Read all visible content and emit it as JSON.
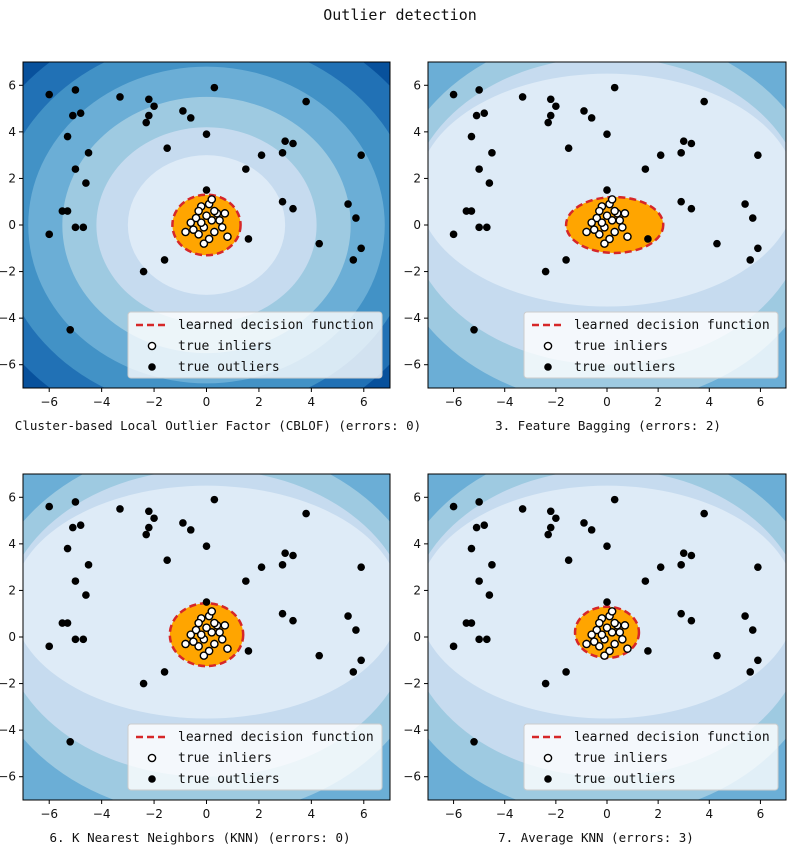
{
  "figure": {
    "suptitle": "Outlier detection",
    "legend": {
      "decision": "learned decision function",
      "inliers": "true inliers",
      "outliers": "true outliers"
    }
  },
  "chart_data": [
    {
      "type": "scatter",
      "title": "Cluster-based Local Outlier Factor (CBLOF) (errors: 0)",
      "xlim": [
        -7,
        7
      ],
      "ylim": [
        -7,
        7
      ],
      "xticks": [
        -6,
        -4,
        -2,
        0,
        2,
        4,
        6
      ],
      "yticks": [
        -6,
        -4,
        -2,
        0,
        2,
        4,
        6
      ],
      "legend_position": "lower-right",
      "decision_region": {
        "cx": 0,
        "cy": 0,
        "rx": 1.3,
        "ry": 1.3
      }
    },
    {
      "type": "scatter",
      "title": "3. Feature Bagging (errors: 2)",
      "xlim": [
        -7,
        7
      ],
      "ylim": [
        -7,
        7
      ],
      "xticks": [
        -6,
        -4,
        -2,
        0,
        2,
        4,
        6
      ],
      "yticks": [
        -6,
        -4,
        -2,
        0,
        2,
        4,
        6
      ],
      "legend_position": "lower-right",
      "decision_region": {
        "cx": 0.3,
        "cy": 0,
        "rx": 1.9,
        "ry": 1.2
      }
    },
    {
      "type": "scatter",
      "title": "6. K Nearest Neighbors (KNN) (errors: 0)",
      "xlim": [
        -7,
        7
      ],
      "ylim": [
        -7,
        7
      ],
      "xticks": [
        -6,
        -4,
        -2,
        0,
        2,
        4,
        6
      ],
      "yticks": [
        -6,
        -4,
        -2,
        0,
        2,
        4,
        6
      ],
      "legend_position": "lower-right",
      "decision_region": {
        "cx": 0,
        "cy": 0.1,
        "rx": 1.4,
        "ry": 1.35
      }
    },
    {
      "type": "scatter",
      "title": "7. Average KNN (errors: 3)",
      "xlim": [
        -7,
        7
      ],
      "ylim": [
        -7,
        7
      ],
      "xticks": [
        -6,
        -4,
        -2,
        0,
        2,
        4,
        6
      ],
      "yticks": [
        -6,
        -4,
        -2,
        0,
        2,
        4,
        6
      ],
      "legend_position": "lower-right",
      "decision_region": {
        "cx": 0,
        "cy": 0.2,
        "rx": 1.25,
        "ry": 1.1
      }
    }
  ],
  "outliers": [
    [
      -6.0,
      5.6
    ],
    [
      -5.0,
      5.8
    ],
    [
      -5.1,
      4.7
    ],
    [
      -5.3,
      3.8
    ],
    [
      -4.8,
      4.8
    ],
    [
      -3.3,
      5.5
    ],
    [
      -2.2,
      5.4
    ],
    [
      -2.3,
      4.4
    ],
    [
      -2.0,
      5.1
    ],
    [
      -2.2,
      4.7
    ],
    [
      -0.9,
      4.9
    ],
    [
      -0.6,
      4.6
    ],
    [
      0.3,
      5.9
    ],
    [
      3.8,
      5.3
    ],
    [
      0.0,
      3.9
    ],
    [
      -1.5,
      3.3
    ],
    [
      -4.5,
      3.1
    ],
    [
      -5.0,
      2.4
    ],
    [
      -4.6,
      1.8
    ],
    [
      -5.5,
      0.6
    ],
    [
      -5.3,
      0.6
    ],
    [
      -6.0,
      -0.4
    ],
    [
      -5.0,
      -0.1
    ],
    [
      -4.7,
      -0.1
    ],
    [
      3.0,
      3.6
    ],
    [
      2.9,
      3.1
    ],
    [
      3.3,
      3.5
    ],
    [
      1.5,
      2.4
    ],
    [
      2.1,
      3.0
    ],
    [
      5.9,
      3.0
    ],
    [
      2.9,
      1.0
    ],
    [
      3.3,
      0.7
    ],
    [
      5.4,
      0.9
    ],
    [
      5.7,
      0.3
    ],
    [
      5.9,
      -1.0
    ],
    [
      5.6,
      -1.5
    ],
    [
      4.3,
      -0.8
    ],
    [
      1.6,
      -0.6
    ],
    [
      -1.6,
      -1.5
    ],
    [
      -2.4,
      -2.0
    ],
    [
      -5.2,
      -4.5
    ],
    [
      0.0,
      1.5
    ]
  ],
  "inliers": [
    [
      -0.2,
      0.8
    ],
    [
      0.1,
      0.9
    ],
    [
      0.4,
      0.5
    ],
    [
      -0.4,
      0.3
    ],
    [
      0.2,
      0.2
    ],
    [
      -0.1,
      -0.1
    ],
    [
      0.3,
      -0.3
    ],
    [
      -0.3,
      -0.4
    ],
    [
      0.6,
      -0.1
    ],
    [
      -0.6,
      0.1
    ],
    [
      0.0,
      0.4
    ],
    [
      -0.2,
      0.1
    ],
    [
      0.5,
      0.2
    ],
    [
      0.1,
      -0.6
    ],
    [
      -0.5,
      -0.2
    ],
    [
      0.7,
      0.5
    ],
    [
      0.2,
      1.1
    ],
    [
      -0.8,
      -0.3
    ],
    [
      0.8,
      -0.5
    ],
    [
      -0.1,
      -0.8
    ],
    [
      0.3,
      0.6
    ],
    [
      -0.3,
      0.6
    ]
  ],
  "colors": {
    "fill_levels": [
      "#08306b",
      "#08519c",
      "#2171b5",
      "#4292c6",
      "#6baed6",
      "#9ecae1",
      "#c6dbef",
      "#deebf7"
    ],
    "decision_fill": "#ffa500",
    "decision_line": "#d62728",
    "point": "#000000",
    "inlier_fill": "#ffffff"
  }
}
